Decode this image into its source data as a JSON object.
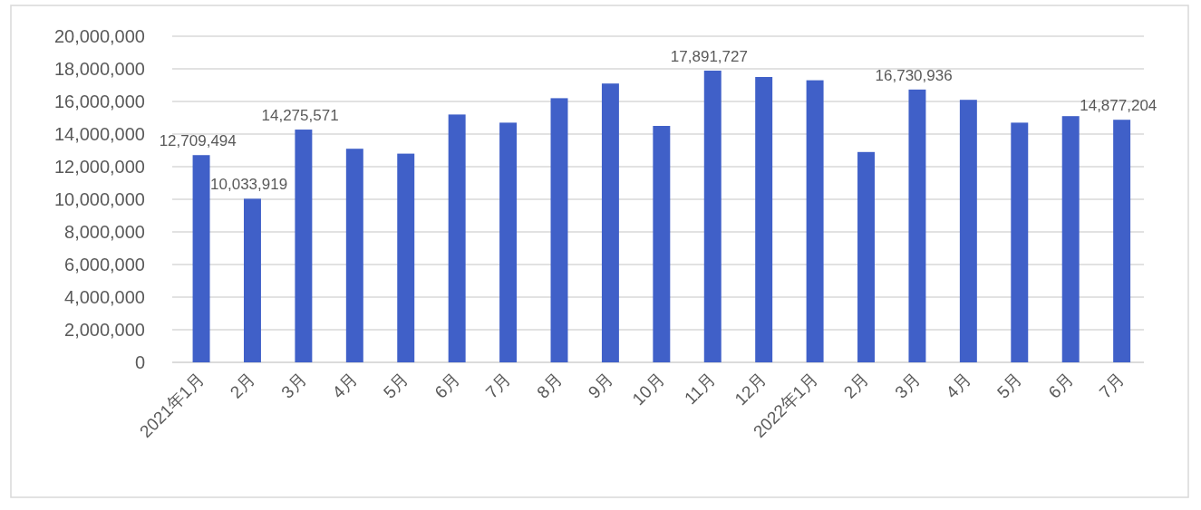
{
  "chart_data": {
    "type": "bar",
    "categories": [
      "2021年1月",
      "2月",
      "3月",
      "4月",
      "5月",
      "6月",
      "7月",
      "8月",
      "9月",
      "10月",
      "11月",
      "12月",
      "2022年1月",
      "2月",
      "3月",
      "4月",
      "5月",
      "6月",
      "7月"
    ],
    "values": [
      12709494,
      10033919,
      14275571,
      13100000,
      12800000,
      15200000,
      14700000,
      16200000,
      17100000,
      14500000,
      17891727,
      17500000,
      17300000,
      12900000,
      16730936,
      16100000,
      14700000,
      15100000,
      14877204
    ],
    "value_labels": [
      "12,709,494",
      "10,033,919",
      "14,275,571",
      null,
      null,
      null,
      null,
      null,
      null,
      null,
      "17,891,727",
      null,
      null,
      null,
      "16,730,936",
      null,
      null,
      null,
      "14,877,204"
    ],
    "color": "#4060c8",
    "ylim": [
      0,
      20000000
    ],
    "yticks": [
      0,
      {
        "value": 2000000,
        "label": "2,000,000"
      },
      {
        "value": 4000000,
        "label": "4,000,000"
      },
      {
        "value": 6000000,
        "label": "6,000,000"
      },
      {
        "value": 8000000,
        "label": "8,000,000"
      },
      {
        "value": 10000000,
        "label": "10,000,000"
      },
      {
        "value": 12000000,
        "label": "12,000,000"
      },
      {
        "value": 14000000,
        "label": "14,000,000"
      },
      {
        "value": 16000000,
        "label": "16,000,000"
      },
      {
        "value": 18000000,
        "label": "18,000,000"
      },
      {
        "value": 20000000,
        "label": "20,000,000"
      }
    ],
    "grid": "y"
  }
}
